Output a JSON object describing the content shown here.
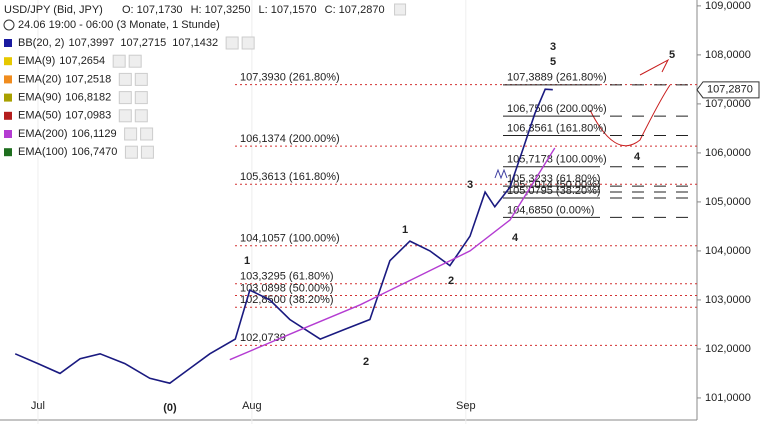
{
  "header": {
    "instrument": "USD/JPY (Bid, JPY)",
    "ohlc": [
      "O: 107,1730",
      "H: 107,3250",
      "L: 107,1570",
      "C: 107,2870"
    ],
    "period": "24.06 19:00 - 06:00 (3 Monate, 1 Stunde)",
    "indicators": [
      {
        "name": "BB(20, 2)",
        "color": "#1a1aa0",
        "values": [
          "107,3997",
          "107,2715",
          "107,1432"
        ]
      },
      {
        "name": "EMA(9)",
        "color": "#e6c800",
        "values": [
          "107,2654"
        ]
      },
      {
        "name": "EMA(20)",
        "color": "#f08c1e",
        "values": [
          "107,2518"
        ]
      },
      {
        "name": "EMA(90)",
        "color": "#a8a000",
        "values": [
          "106,8182"
        ]
      },
      {
        "name": "EMA(50)",
        "color": "#b41e1e",
        "values": [
          "107,0983"
        ]
      },
      {
        "name": "EMA(200)",
        "color": "#b43cd2",
        "values": [
          "106,1129"
        ]
      },
      {
        "name": "EMA(100)",
        "color": "#1e6e1e",
        "values": [
          "106,7470"
        ]
      }
    ]
  },
  "chart_data": {
    "type": "line",
    "xlim": [
      -4.5,
      96.5
    ],
    "ylim": [
      100.55,
      109.12
    ],
    "xticks": [
      {
        "value": 1,
        "label": "Jul"
      },
      {
        "value": 32,
        "label": "Aug"
      },
      {
        "value": 63,
        "label": "Sep"
      }
    ],
    "yticks": [
      {
        "value": 101,
        "label": "101,0000"
      },
      {
        "value": 102,
        "label": "102,0000"
      },
      {
        "value": 103,
        "label": "103,0000"
      },
      {
        "value": 104,
        "label": "104,0000"
      },
      {
        "value": 105,
        "label": "105,0000"
      },
      {
        "value": 106,
        "label": "106,0000"
      },
      {
        "value": 107,
        "label": "107,0000"
      },
      {
        "value": 108,
        "label": "108,0000"
      },
      {
        "value": 109,
        "label": "109,0000"
      }
    ],
    "series": [
      {
        "name": "USD/JPY",
        "color": "#1a1a80",
        "x": [
          -2.3,
          1,
          4.2,
          7.1,
          10,
          13.6,
          17.2,
          20.1,
          23,
          25.9,
          29.6,
          31.7,
          34.6,
          37.5,
          41.9,
          45.5,
          49.1,
          52,
          54.9,
          57.8,
          60.7,
          63.6,
          65.8,
          67.2,
          69.4,
          71.1,
          73,
          74.5,
          75.6
        ],
        "values": [
          101.9,
          101.7,
          101.5,
          101.8,
          101.9,
          101.7,
          101.4,
          101.3,
          101.6,
          101.9,
          102.2,
          103.2,
          103.0,
          102.6,
          102.2,
          102.4,
          102.6,
          103.8,
          104.2,
          104.0,
          103.7,
          104.3,
          105.2,
          104.9,
          105.3,
          106.0,
          106.8,
          107.3,
          107.29
        ]
      },
      {
        "name": "EMA(200)",
        "color": "#b43cd2",
        "x": [
          28.8,
          39,
          47.7,
          56.4,
          63.6,
          69.4,
          75.9
        ],
        "values": [
          101.78,
          102.39,
          102.9,
          103.5,
          104.0,
          104.63,
          106.1
        ]
      }
    ],
    "fib_left": [
      {
        "value": 107.393,
        "label": "107,3930 (261.80%)"
      },
      {
        "value": 106.1374,
        "label": "106,1374 (200.00%)"
      },
      {
        "value": 105.3613,
        "label": "105,3613 (161.80%)"
      },
      {
        "value": 104.1057,
        "label": "104,1057 (100.00%)"
      },
      {
        "value": 103.3295,
        "label": "103,3295 (61.80%)"
      },
      {
        "value": 103.0898,
        "label": "103,0898 (50.00%)"
      },
      {
        "value": 102.85,
        "label": "102,8500 (38.20%)"
      },
      {
        "value": 102.0739,
        "label": "102,0739"
      }
    ],
    "fib_right": [
      {
        "value": 107.3889,
        "label": "107,3889 (261.80%)"
      },
      {
        "value": 106.7506,
        "label": "106,7506 (200.00%)"
      },
      {
        "value": 106.3561,
        "label": "106,3561 (161.80%)"
      },
      {
        "value": 105.7178,
        "label": "105,7178 (100.00%)"
      },
      {
        "value": 105.3233,
        "label": "105,3233 (61.80%)"
      },
      {
        "value": 105.2014,
        "label": "105,2014 (50.00%)"
      },
      {
        "value": 105.0795,
        "label": "105,0795 (38.20%)"
      },
      {
        "value": 104.685,
        "label": "104,6850 (0.00%)"
      }
    ],
    "price_tag": {
      "value": 107.287,
      "label": "107,2870"
    },
    "annotations": [
      {
        "text": "3",
        "color": "#c81e1e"
      },
      {
        "text": "5",
        "color": "#3c3ca0"
      },
      {
        "text": "5",
        "color": "#c81e1e"
      },
      {
        "text": "4",
        "color": "#c81e1e"
      },
      {
        "text": "4",
        "color": "#3c3ca0"
      },
      {
        "text": "3",
        "color": "#3c3ca0"
      },
      {
        "text": "1",
        "color": "#3c3ca0"
      },
      {
        "text": "2",
        "color": "#3c3ca0"
      },
      {
        "text": "1",
        "color": "#c81e1e"
      },
      {
        "text": "2",
        "color": "#c81e1e"
      },
      {
        "text": "(0)",
        "color": "#c81e1e"
      }
    ]
  }
}
